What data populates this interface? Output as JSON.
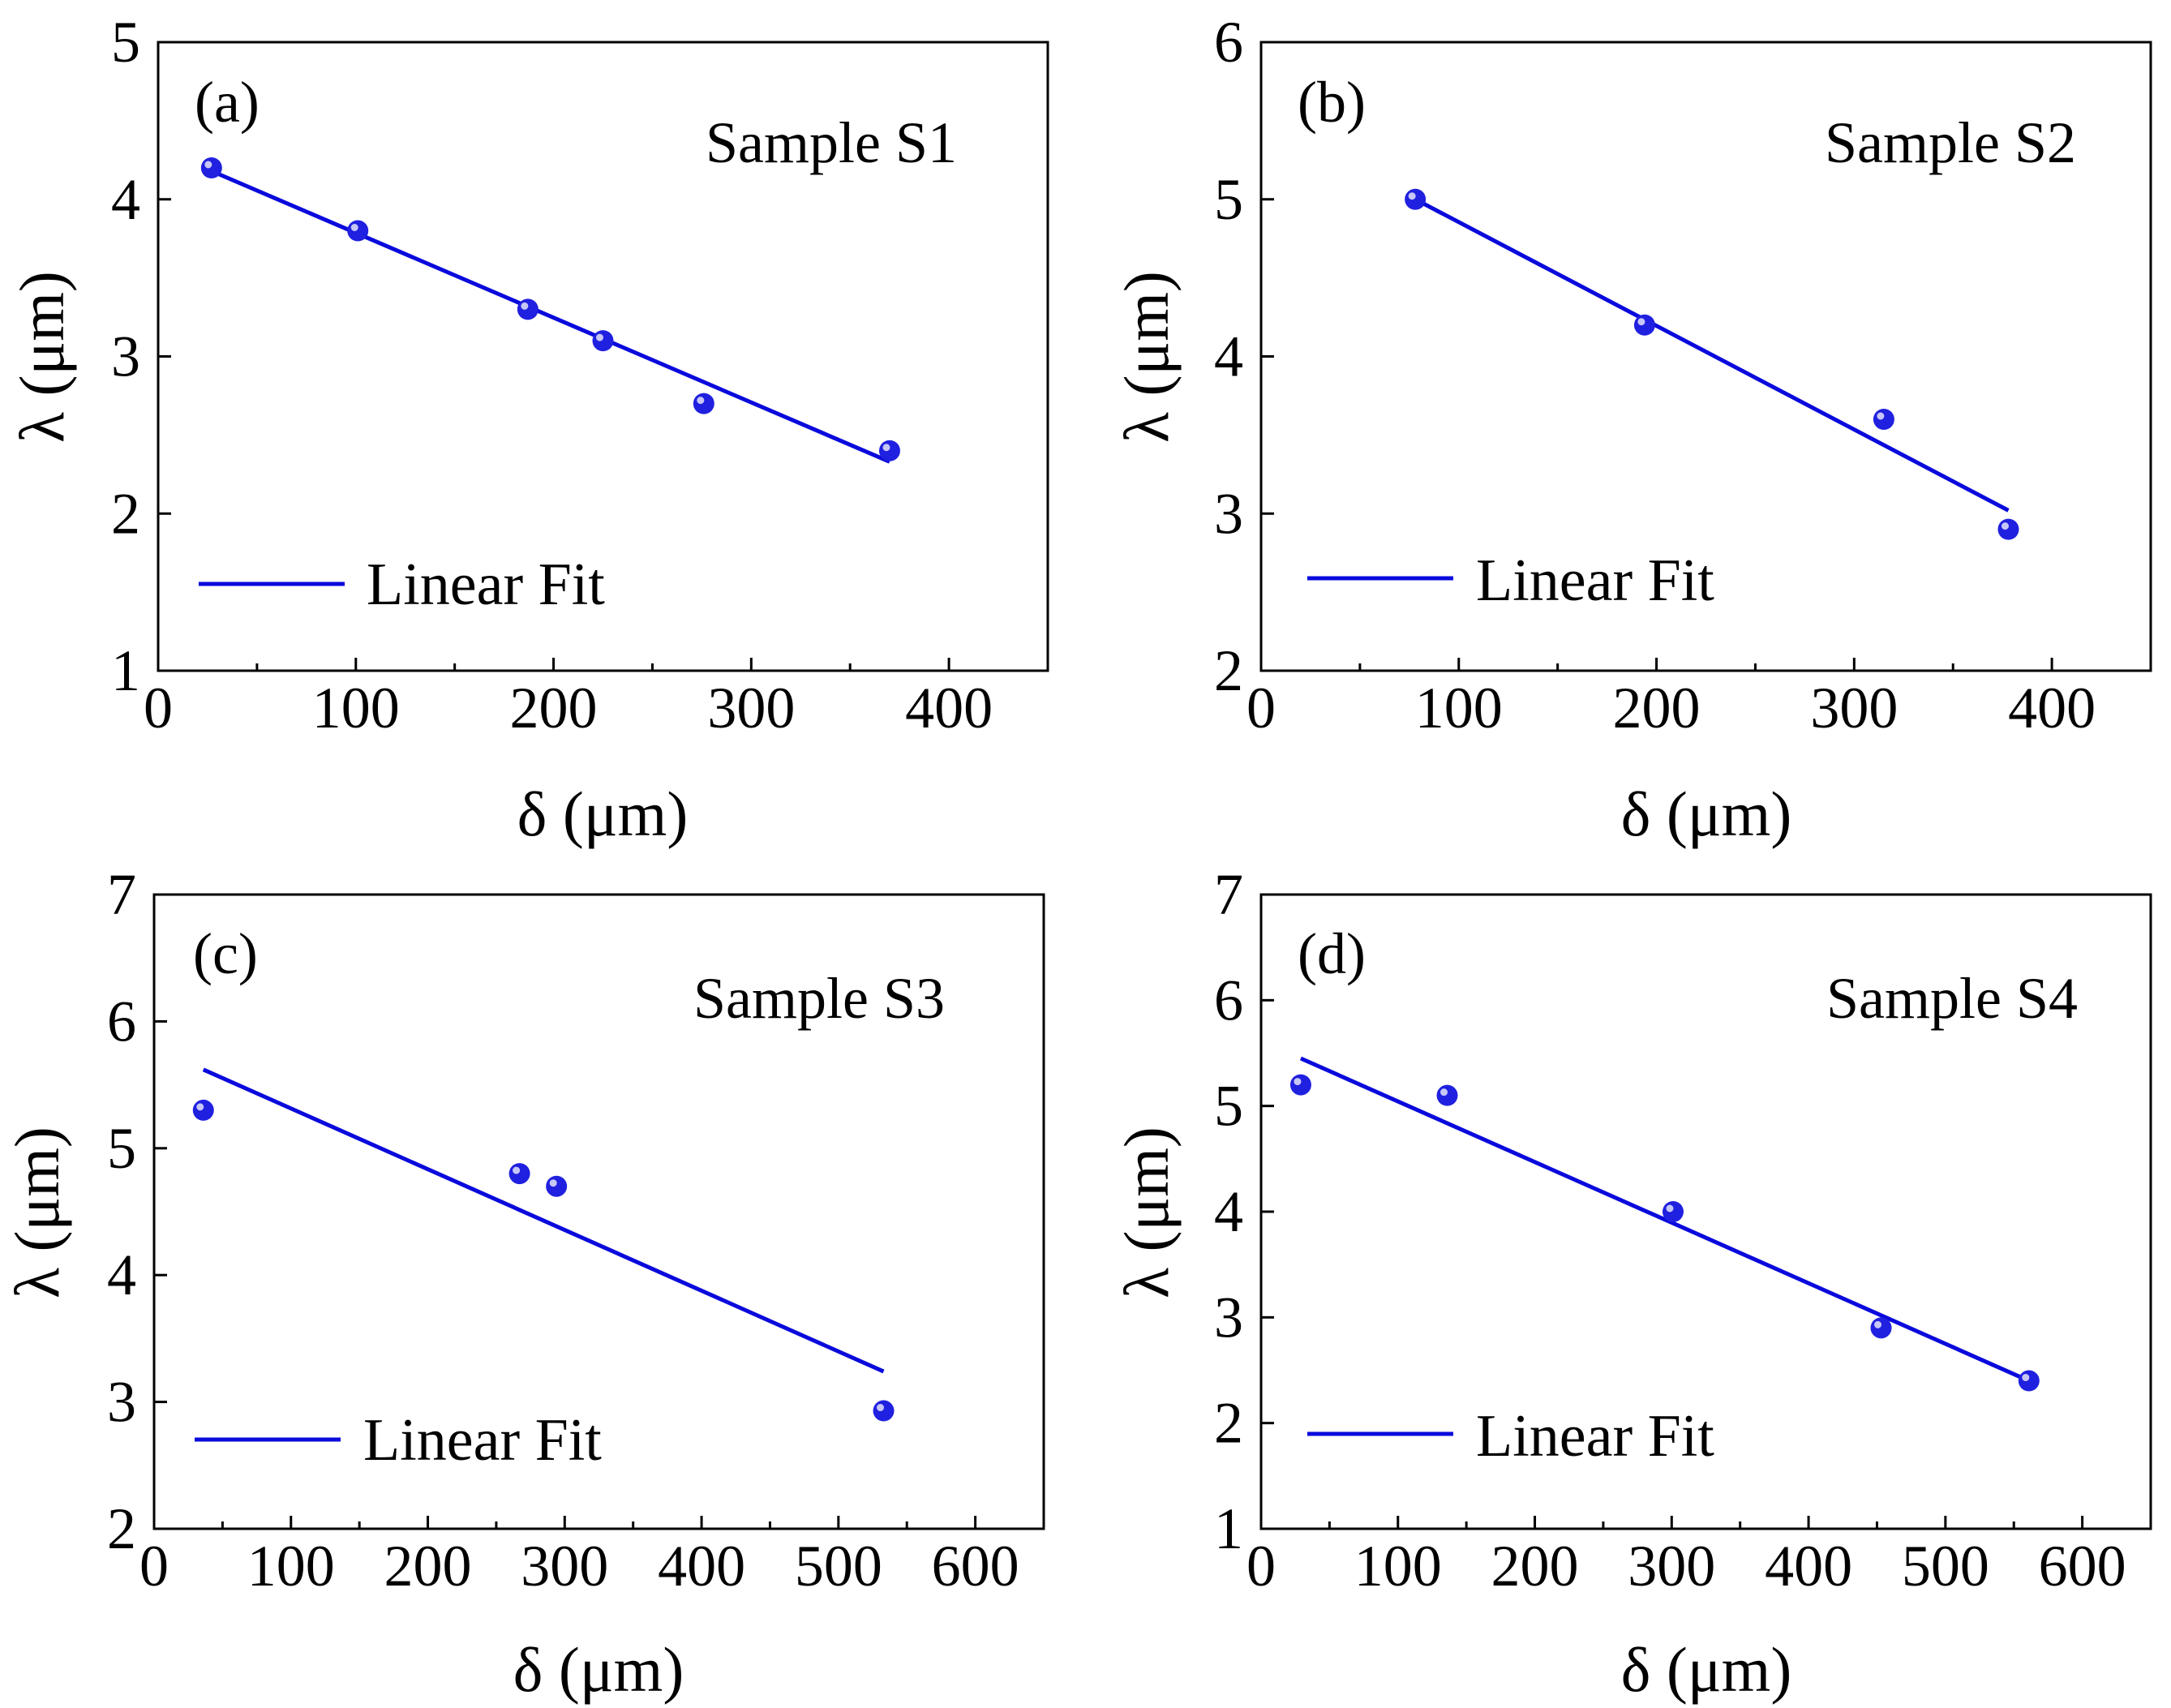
{
  "figure": {
    "series_color": "#0a0adc",
    "point_color": "#2020e0"
  },
  "chart_data": [
    {
      "type": "scatter",
      "panel_label": "(a)",
      "title": "Sample S1",
      "xlabel": "δ (μm)",
      "ylabel": "λ (μm)",
      "xlim": [
        0,
        450
      ],
      "ylim": [
        1,
        5
      ],
      "xticks": [
        0,
        100,
        200,
        300,
        400
      ],
      "yticks": [
        1,
        2,
        3,
        4,
        5
      ],
      "x": [
        27,
        101,
        187,
        225,
        276,
        370
      ],
      "y": [
        4.2,
        3.8,
        3.3,
        3.1,
        2.7,
        2.4
      ],
      "fit": {
        "x": [
          27,
          370
        ],
        "y": [
          4.18,
          2.33
        ]
      },
      "legend": "Linear Fit"
    },
    {
      "type": "scatter",
      "panel_label": "(b)",
      "title": "Sample S2",
      "xlabel": "δ (μm)",
      "ylabel": "λ (μm)",
      "xlim": [
        0,
        450
      ],
      "ylim": [
        2,
        6
      ],
      "xticks": [
        0,
        100,
        200,
        300,
        400
      ],
      "yticks": [
        2,
        3,
        4,
        5,
        6
      ],
      "x": [
        78,
        194,
        315,
        378
      ],
      "y": [
        5.0,
        4.2,
        3.6,
        2.9
      ],
      "fit": {
        "x": [
          78,
          378
        ],
        "y": [
          5.0,
          3.02
        ]
      },
      "legend": "Linear Fit"
    },
    {
      "type": "scatter",
      "panel_label": "(c)",
      "title": "Sample S3",
      "xlabel": "δ (μm)",
      "ylabel": "λ (μm)",
      "xlim": [
        0,
        650
      ],
      "ylim": [
        2,
        7
      ],
      "xticks": [
        0,
        100,
        200,
        300,
        400,
        500,
        600
      ],
      "yticks": [
        2,
        3,
        4,
        5,
        6,
        7
      ],
      "x": [
        36,
        267,
        294,
        533
      ],
      "y": [
        5.3,
        4.8,
        4.7,
        2.93
      ],
      "fit": {
        "x": [
          36,
          533
        ],
        "y": [
          5.62,
          3.24
        ]
      },
      "legend": "Linear Fit"
    },
    {
      "type": "scatter",
      "panel_label": "(d)",
      "title": "Sample S4",
      "xlabel": "δ (μm)",
      "ylabel": "λ (μm)",
      "xlim": [
        0,
        650
      ],
      "ylim": [
        1,
        7
      ],
      "xticks": [
        0,
        100,
        200,
        300,
        400,
        500,
        600
      ],
      "yticks": [
        1,
        2,
        3,
        4,
        5,
        6,
        7
      ],
      "x": [
        29,
        136,
        301,
        453,
        561
      ],
      "y": [
        5.2,
        5.1,
        4.0,
        2.9,
        2.4
      ],
      "fit": {
        "x": [
          29,
          561
        ],
        "y": [
          5.45,
          2.4
        ]
      },
      "legend": "Linear Fit"
    }
  ]
}
